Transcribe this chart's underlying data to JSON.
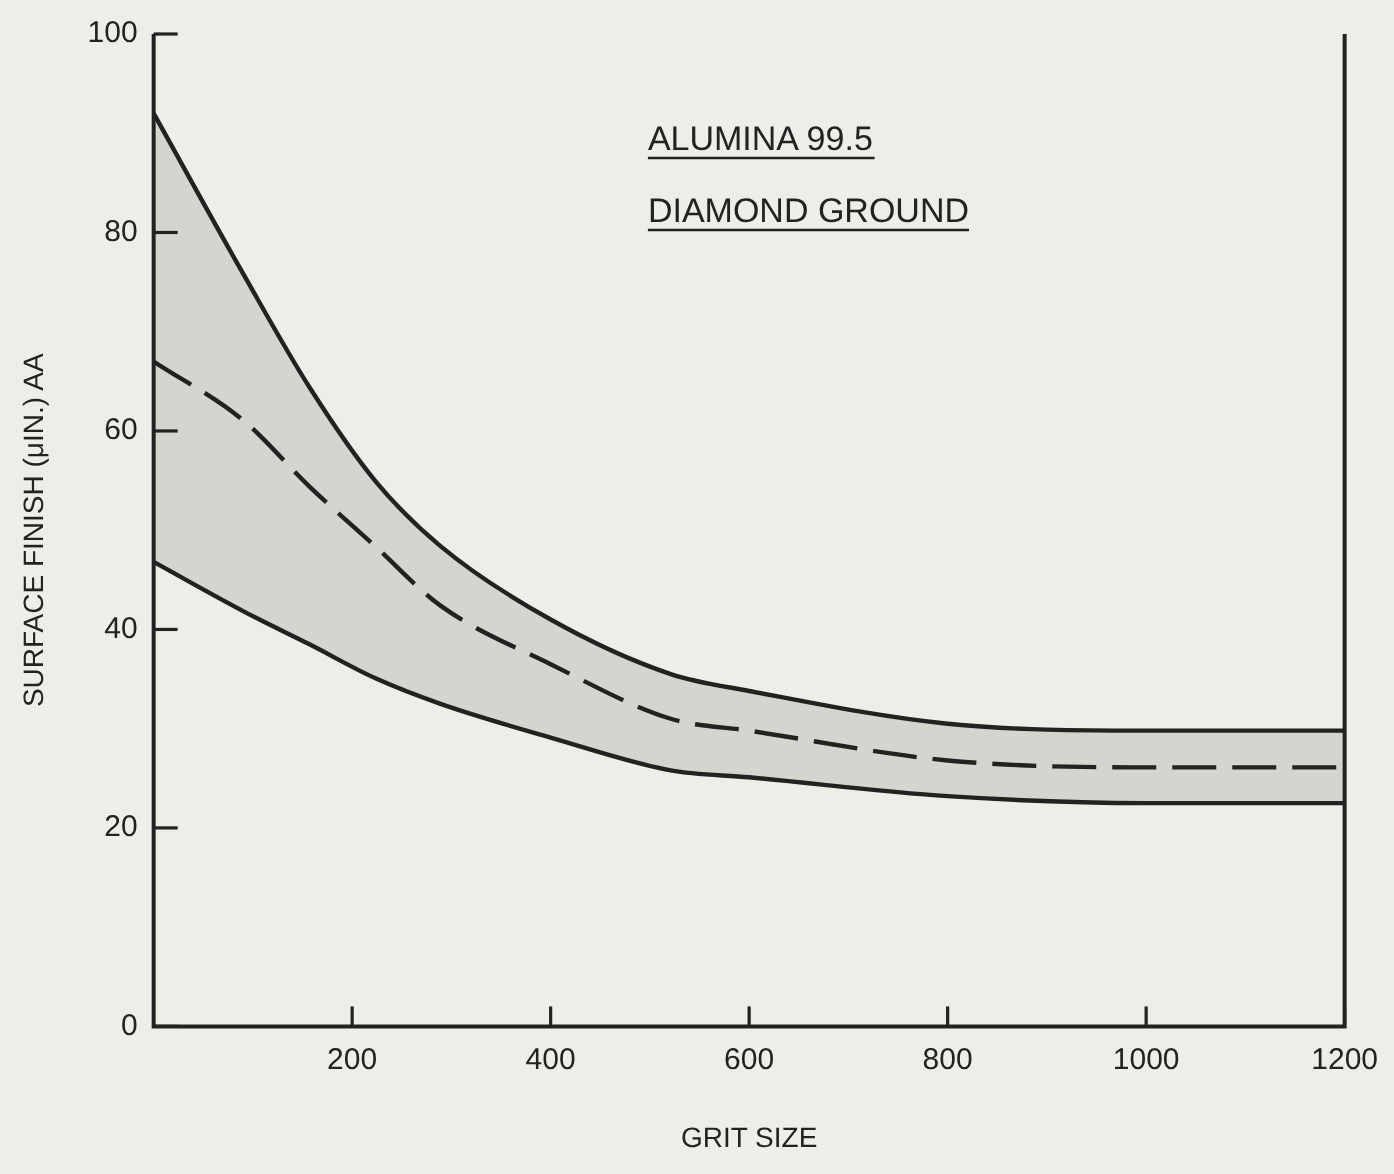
{
  "chart_data": {
    "type": "line",
    "xlabel": "GRIT SIZE",
    "ylabel": "SURFACE FINISH (μIN.) AA",
    "annotations": [
      "ALUMINA 99.5",
      "DIAMOND GROUND"
    ],
    "x": [
      0,
      91,
      157,
      223,
      289,
      400,
      521,
      600,
      800,
      1000,
      1200
    ],
    "series": [
      {
        "color": "#222222",
        "line_style": "solid",
        "values": [
          92,
          75.7,
          64.4,
          55,
          48.4,
          41,
          35.5,
          33.8,
          30.5,
          29.8,
          29.8
        ]
      },
      {
        "color": "#222222",
        "line_style": "solid",
        "values": [
          46.8,
          41.8,
          38.5,
          35.1,
          32.5,
          29.1,
          25.8,
          25.1,
          23.2,
          22.5,
          22.5
        ]
      },
      {
        "color": "#222222",
        "line_style": "dashed",
        "values": [
          67,
          61,
          54.4,
          48.4,
          42.4,
          36.5,
          31,
          29.8,
          26.8,
          26.1,
          26.1
        ],
        "lower": [
          46.8,
          41.8,
          38.5,
          35.1,
          32.5,
          29.1,
          25.8,
          25.1,
          23.2,
          22.5,
          22.5
        ],
        "upper": [
          92,
          75.7,
          64.4,
          55,
          48.4,
          41,
          35.5,
          33.8,
          30.5,
          29.8,
          29.8
        ]
      }
    ],
    "xlim": [
      0,
      1200
    ],
    "xticks": [
      200,
      400,
      600,
      800,
      1000,
      1200
    ],
    "ylim": [
      0,
      100
    ],
    "yticks": [
      0,
      20,
      40,
      60,
      80,
      100
    ],
    "grid": false,
    "legend": false,
    "marker": "none"
  }
}
